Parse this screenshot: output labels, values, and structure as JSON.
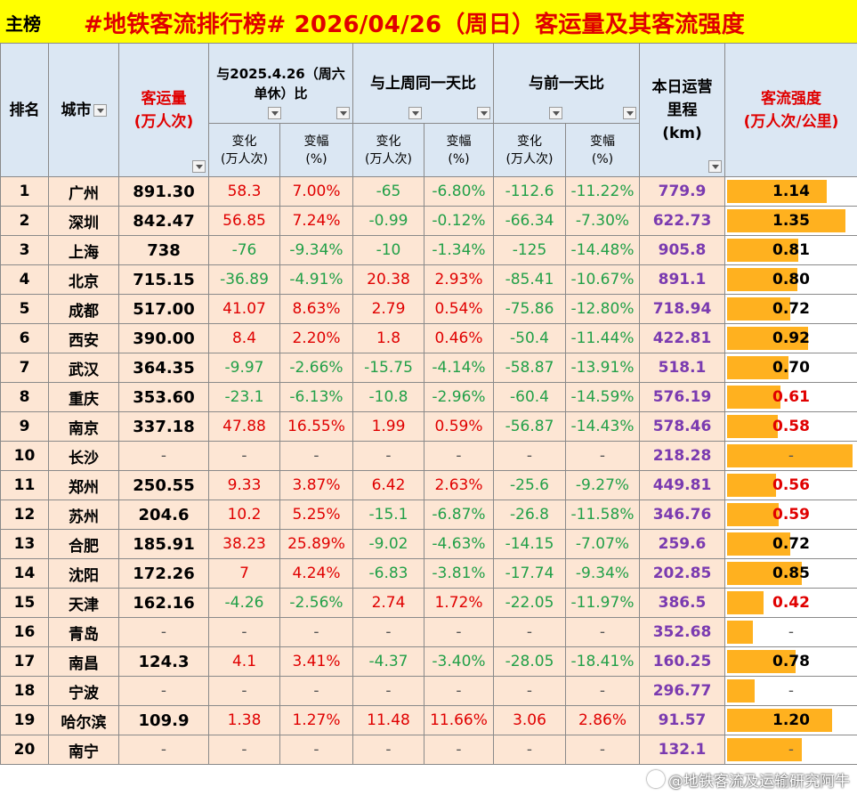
{
  "header": {
    "tag": "主榜",
    "title": "#地铁客流排行榜# 2026/04/26（周日）客运量及其客流强度"
  },
  "columns": {
    "rank": "排名",
    "city": "城市",
    "volume_line1": "客运量",
    "volume_line2": "(万人次)",
    "yoy_line1": "与2025.4.26（周六",
    "yoy_line2": "单休）比",
    "wow": "与上周同一天比",
    "dod": "与前一天比",
    "mileage_line1": "本日运营",
    "mileage_line2": "里程",
    "mileage_line3": "(km)",
    "intensity_line1": "客流强度",
    "intensity_line2": "(万人次/公里)",
    "change_line1": "变化",
    "change_line2": "(万人次)",
    "pct_line1": "变幅",
    "pct_line2": "(%)"
  },
  "rows": [
    {
      "rank": "1",
      "city": "广州",
      "volume": "891.30",
      "yoy_chg": "58.3",
      "yoy_pct": "7.00%",
      "wow_chg": "-65",
      "wow_pct": "-6.80%",
      "dod_chg": "-112.6",
      "dod_pct": "-11.22%",
      "mileage": "779.9",
      "intensity": "1.14",
      "bar": 1.14,
      "ired": false
    },
    {
      "rank": "2",
      "city": "深圳",
      "volume": "842.47",
      "yoy_chg": "56.85",
      "yoy_pct": "7.24%",
      "wow_chg": "-0.99",
      "wow_pct": "-0.12%",
      "dod_chg": "-66.34",
      "dod_pct": "-7.30%",
      "mileage": "622.73",
      "intensity": "1.35",
      "bar": 1.35,
      "ired": false
    },
    {
      "rank": "3",
      "city": "上海",
      "volume": "738",
      "yoy_chg": "-76",
      "yoy_pct": "-9.34%",
      "wow_chg": "-10",
      "wow_pct": "-1.34%",
      "dod_chg": "-125",
      "dod_pct": "-14.48%",
      "mileage": "905.8",
      "intensity": "0.81",
      "bar": 0.81,
      "ired": false
    },
    {
      "rank": "4",
      "city": "北京",
      "volume": "715.15",
      "yoy_chg": "-36.89",
      "yoy_pct": "-4.91%",
      "wow_chg": "20.38",
      "wow_pct": "2.93%",
      "dod_chg": "-85.41",
      "dod_pct": "-10.67%",
      "mileage": "891.1",
      "intensity": "0.80",
      "bar": 0.8,
      "ired": false
    },
    {
      "rank": "5",
      "city": "成都",
      "volume": "517.00",
      "yoy_chg": "41.07",
      "yoy_pct": "8.63%",
      "wow_chg": "2.79",
      "wow_pct": "0.54%",
      "dod_chg": "-75.86",
      "dod_pct": "-12.80%",
      "mileage": "718.94",
      "intensity": "0.72",
      "bar": 0.72,
      "ired": false
    },
    {
      "rank": "6",
      "city": "西安",
      "volume": "390.00",
      "yoy_chg": "8.4",
      "yoy_pct": "2.20%",
      "wow_chg": "1.8",
      "wow_pct": "0.46%",
      "dod_chg": "-50.4",
      "dod_pct": "-11.44%",
      "mileage": "422.81",
      "intensity": "0.92",
      "bar": 0.92,
      "ired": false
    },
    {
      "rank": "7",
      "city": "武汉",
      "volume": "364.35",
      "yoy_chg": "-9.97",
      "yoy_pct": "-2.66%",
      "wow_chg": "-15.75",
      "wow_pct": "-4.14%",
      "dod_chg": "-58.87",
      "dod_pct": "-13.91%",
      "mileage": "518.1",
      "intensity": "0.70",
      "bar": 0.7,
      "ired": false
    },
    {
      "rank": "8",
      "city": "重庆",
      "volume": "353.60",
      "yoy_chg": "-23.1",
      "yoy_pct": "-6.13%",
      "wow_chg": "-10.8",
      "wow_pct": "-2.96%",
      "dod_chg": "-60.4",
      "dod_pct": "-14.59%",
      "mileage": "576.19",
      "intensity": "0.61",
      "bar": 0.61,
      "ired": true
    },
    {
      "rank": "9",
      "city": "南京",
      "volume": "337.18",
      "yoy_chg": "47.88",
      "yoy_pct": "16.55%",
      "wow_chg": "1.99",
      "wow_pct": "0.59%",
      "dod_chg": "-56.87",
      "dod_pct": "-14.43%",
      "mileage": "578.46",
      "intensity": "0.58",
      "bar": 0.58,
      "ired": true
    },
    {
      "rank": "10",
      "city": "长沙",
      "volume": "-",
      "yoy_chg": "-",
      "yoy_pct": "-",
      "wow_chg": "-",
      "wow_pct": "-",
      "dod_chg": "-",
      "dod_pct": "-",
      "mileage": "218.28",
      "intensity": "-",
      "bar": 1.43,
      "ired": false
    },
    {
      "rank": "11",
      "city": "郑州",
      "volume": "250.55",
      "yoy_chg": "9.33",
      "yoy_pct": "3.87%",
      "wow_chg": "6.42",
      "wow_pct": "2.63%",
      "dod_chg": "-25.6",
      "dod_pct": "-9.27%",
      "mileage": "449.81",
      "intensity": "0.56",
      "bar": 0.56,
      "ired": true
    },
    {
      "rank": "12",
      "city": "苏州",
      "volume": "204.6",
      "yoy_chg": "10.2",
      "yoy_pct": "5.25%",
      "wow_chg": "-15.1",
      "wow_pct": "-6.87%",
      "dod_chg": "-26.8",
      "dod_pct": "-11.58%",
      "mileage": "346.76",
      "intensity": "0.59",
      "bar": 0.59,
      "ired": true
    },
    {
      "rank": "13",
      "city": "合肥",
      "volume": "185.91",
      "yoy_chg": "38.23",
      "yoy_pct": "25.89%",
      "wow_chg": "-9.02",
      "wow_pct": "-4.63%",
      "dod_chg": "-14.15",
      "dod_pct": "-7.07%",
      "mileage": "259.6",
      "intensity": "0.72",
      "bar": 0.72,
      "ired": false
    },
    {
      "rank": "14",
      "city": "沈阳",
      "volume": "172.26",
      "yoy_chg": "7",
      "yoy_pct": "4.24%",
      "wow_chg": "-6.83",
      "wow_pct": "-3.81%",
      "dod_chg": "-17.74",
      "dod_pct": "-9.34%",
      "mileage": "202.85",
      "intensity": "0.85",
      "bar": 0.85,
      "ired": false
    },
    {
      "rank": "15",
      "city": "天津",
      "volume": "162.16",
      "yoy_chg": "-4.26",
      "yoy_pct": "-2.56%",
      "wow_chg": "2.74",
      "wow_pct": "1.72%",
      "dod_chg": "-22.05",
      "dod_pct": "-11.97%",
      "mileage": "386.5",
      "intensity": "0.42",
      "bar": 0.42,
      "ired": true
    },
    {
      "rank": "16",
      "city": "青岛",
      "volume": "-",
      "yoy_chg": "-",
      "yoy_pct": "-",
      "wow_chg": "-",
      "wow_pct": "-",
      "dod_chg": "-",
      "dod_pct": "-",
      "mileage": "352.68",
      "intensity": "-",
      "bar": 0.29,
      "ired": false
    },
    {
      "rank": "17",
      "city": "南昌",
      "volume": "124.3",
      "yoy_chg": "4.1",
      "yoy_pct": "3.41%",
      "wow_chg": "-4.37",
      "wow_pct": "-3.40%",
      "dod_chg": "-28.05",
      "dod_pct": "-18.41%",
      "mileage": "160.25",
      "intensity": "0.78",
      "bar": 0.78,
      "ired": false
    },
    {
      "rank": "18",
      "city": "宁波",
      "volume": "-",
      "yoy_chg": "-",
      "yoy_pct": "-",
      "wow_chg": "-",
      "wow_pct": "-",
      "dod_chg": "-",
      "dod_pct": "-",
      "mileage": "296.77",
      "intensity": "-",
      "bar": 0.31,
      "ired": false
    },
    {
      "rank": "19",
      "city": "哈尔滨",
      "volume": "109.9",
      "yoy_chg": "1.38",
      "yoy_pct": "1.27%",
      "wow_chg": "11.48",
      "wow_pct": "11.66%",
      "dod_chg": "3.06",
      "dod_pct": "2.86%",
      "mileage": "91.57",
      "intensity": "1.20",
      "bar": 1.2,
      "ired": false
    },
    {
      "rank": "20",
      "city": "南宁",
      "volume": "-",
      "yoy_chg": "-",
      "yoy_pct": "-",
      "wow_chg": "-",
      "wow_pct": "-",
      "dod_chg": "-",
      "dod_pct": "-",
      "mileage": "132.1",
      "intensity": "-",
      "bar": 0.85,
      "ired": false
    }
  ],
  "colors": {
    "title_bg": "#ffff00",
    "title_text": "#e00000",
    "header_bg": "#dbe7f3",
    "row_bg": "#fde6d4",
    "positive": "#e00000",
    "negative": "#22a048",
    "mileage": "#7a3ab0",
    "bar": "#ffb11f"
  },
  "watermark": "@地铁客流及运输研究阿牛"
}
